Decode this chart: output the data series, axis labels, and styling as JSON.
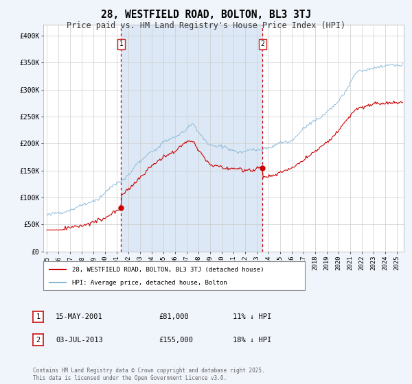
{
  "title": "28, WESTFIELD ROAD, BOLTON, BL3 3TJ",
  "subtitle": "Price paid vs. HM Land Registry's House Price Index (HPI)",
  "title_fontsize": 10.5,
  "subtitle_fontsize": 8.5,
  "bg_color": "#f0f4fb",
  "plot_bg_color": "#ffffff",
  "red_line_color": "#cc0000",
  "blue_line_color": "#88b8d8",
  "highlight_bg": "#dce8f5",
  "vline_color": "#cc0000",
  "marker1_x": 2001.37,
  "marker1_y": 81000,
  "marker2_x": 2013.5,
  "marker2_y": 155000,
  "ylim": [
    0,
    420000
  ],
  "xlim_start": 1994.7,
  "xlim_end": 2025.6,
  "yticks": [
    0,
    50000,
    100000,
    150000,
    200000,
    250000,
    300000,
    350000,
    400000
  ],
  "ytick_labels": [
    "£0",
    "£50K",
    "£100K",
    "£150K",
    "£200K",
    "£250K",
    "£300K",
    "£350K",
    "£400K"
  ],
  "xtick_years": [
    1995,
    1996,
    1997,
    1998,
    1999,
    2000,
    2001,
    2002,
    2003,
    2004,
    2005,
    2006,
    2007,
    2008,
    2009,
    2010,
    2011,
    2012,
    2013,
    2014,
    2015,
    2016,
    2017,
    2018,
    2019,
    2020,
    2021,
    2022,
    2023,
    2024,
    2025
  ],
  "legend_label_red": "28, WESTFIELD ROAD, BOLTON, BL3 3TJ (detached house)",
  "legend_label_blue": "HPI: Average price, detached house, Bolton",
  "annotation1_date": "15-MAY-2001",
  "annotation1_price": "£81,000",
  "annotation1_hpi": "11% ↓ HPI",
  "annotation2_date": "03-JUL-2013",
  "annotation2_price": "£155,000",
  "annotation2_hpi": "18% ↓ HPI",
  "footer": "Contains HM Land Registry data © Crown copyright and database right 2025.\nThis data is licensed under the Open Government Licence v3.0."
}
